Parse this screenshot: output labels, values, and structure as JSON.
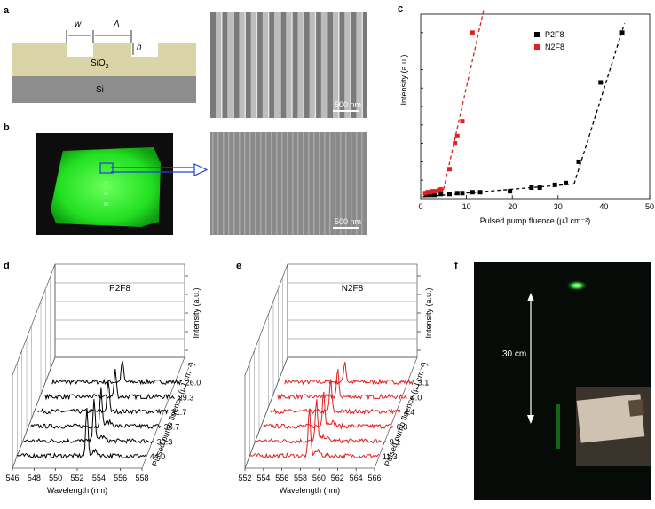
{
  "panels": {
    "a": "a",
    "b": "b",
    "c": "c",
    "d": "d",
    "e": "e",
    "f": "f"
  },
  "panel_a": {
    "w_label": "w",
    "lambda_label": "Λ",
    "h_label": "h",
    "sio2_label": "SiO",
    "sio2_sub": "2",
    "si_label": "Si",
    "scale_label": "500 nm"
  },
  "panel_b": {
    "scale_label": "500 nm"
  },
  "panel_f": {
    "distance_label": "30 cm"
  },
  "colors": {
    "p2f8": "#000000",
    "n2f8": "#e02020",
    "sio2": "#d9d5a8",
    "si": "#8d8d8d",
    "green": "#2aff2a",
    "blue_arrow": "#2244cc"
  },
  "chart_data": [
    {
      "panel": "c",
      "type": "scatter",
      "xlabel": "Pulsed pump fluence (µJ cm⁻²)",
      "ylabel": "Intensity (a.u.)",
      "xlim": [
        0,
        50
      ],
      "xticks": [
        0,
        10,
        20,
        30,
        40,
        50
      ],
      "legend_placement": "top-right",
      "series": [
        {
          "name": "P2F8",
          "color": "#000000",
          "x": [
            1.2,
            2.0,
            3.0,
            4.4,
            6.3,
            8.0,
            9.1,
            11.3,
            13.0,
            19.5,
            24.2,
            26.0,
            29.3,
            31.7,
            34.5,
            39.3,
            44.0
          ],
          "y": [
            0.02,
            0.02,
            0.02,
            0.025,
            0.025,
            0.03,
            0.03,
            0.035,
            0.035,
            0.04,
            0.06,
            0.06,
            0.075,
            0.085,
            0.2,
            0.63,
            0.9
          ]
        },
        {
          "name": "N2F8",
          "color": "#e02020",
          "x": [
            1.0,
            1.5,
            2.0,
            2.5,
            3.1,
            4.0,
            4.4,
            6.3,
            7.5,
            8.0,
            9.1,
            11.3
          ],
          "y": [
            0.03,
            0.035,
            0.035,
            0.04,
            0.04,
            0.045,
            0.05,
            0.16,
            0.3,
            0.34,
            0.42,
            0.9
          ]
        }
      ],
      "fits": [
        {
          "series": "P2F8",
          "x": [
            0.5,
            33.5
          ],
          "y": [
            0.01,
            0.08
          ]
        },
        {
          "series": "P2F8",
          "x": [
            33.5,
            44.5
          ],
          "y": [
            0.08,
            0.95
          ]
        },
        {
          "series": "N2F8",
          "x": [
            0.5,
            5.0
          ],
          "y": [
            0.02,
            0.05
          ]
        },
        {
          "series": "N2F8",
          "x": [
            5.0,
            14.0
          ],
          "y": [
            0.05,
            1.05
          ]
        }
      ]
    },
    {
      "panel": "d",
      "type": "line",
      "title": "P2F8",
      "xlabel": "Wavelength (nm)",
      "ylabel": "Intensity (a.u.)",
      "depth_label": "Pulsed pump fluence (µJ cm⁻²)",
      "xticks": [
        "546",
        "548",
        "550",
        "552",
        "554",
        "556",
        "558"
      ],
      "xlim": [
        546,
        558
      ],
      "depth_values": [
        "26.0",
        "29.3",
        "31.7",
        "36.7",
        "39.3",
        "44.0"
      ],
      "peak_wavelength": 552.5
    },
    {
      "panel": "e",
      "type": "line",
      "title": "N2F8",
      "xlabel": "Wavelength (nm)",
      "ylabel": "Intensity (a.u.)",
      "depth_label": "Pulsed pump fluence (µJ cm⁻²)",
      "xticks": [
        "552",
        "554",
        "556",
        "558",
        "560",
        "562",
        "564",
        "566"
      ],
      "xlim": [
        552,
        566
      ],
      "depth_values": [
        "3.1",
        "4.0",
        "4.4",
        "6.3",
        "9.1",
        "11.3"
      ],
      "peak_wavelength": 558.5
    }
  ]
}
